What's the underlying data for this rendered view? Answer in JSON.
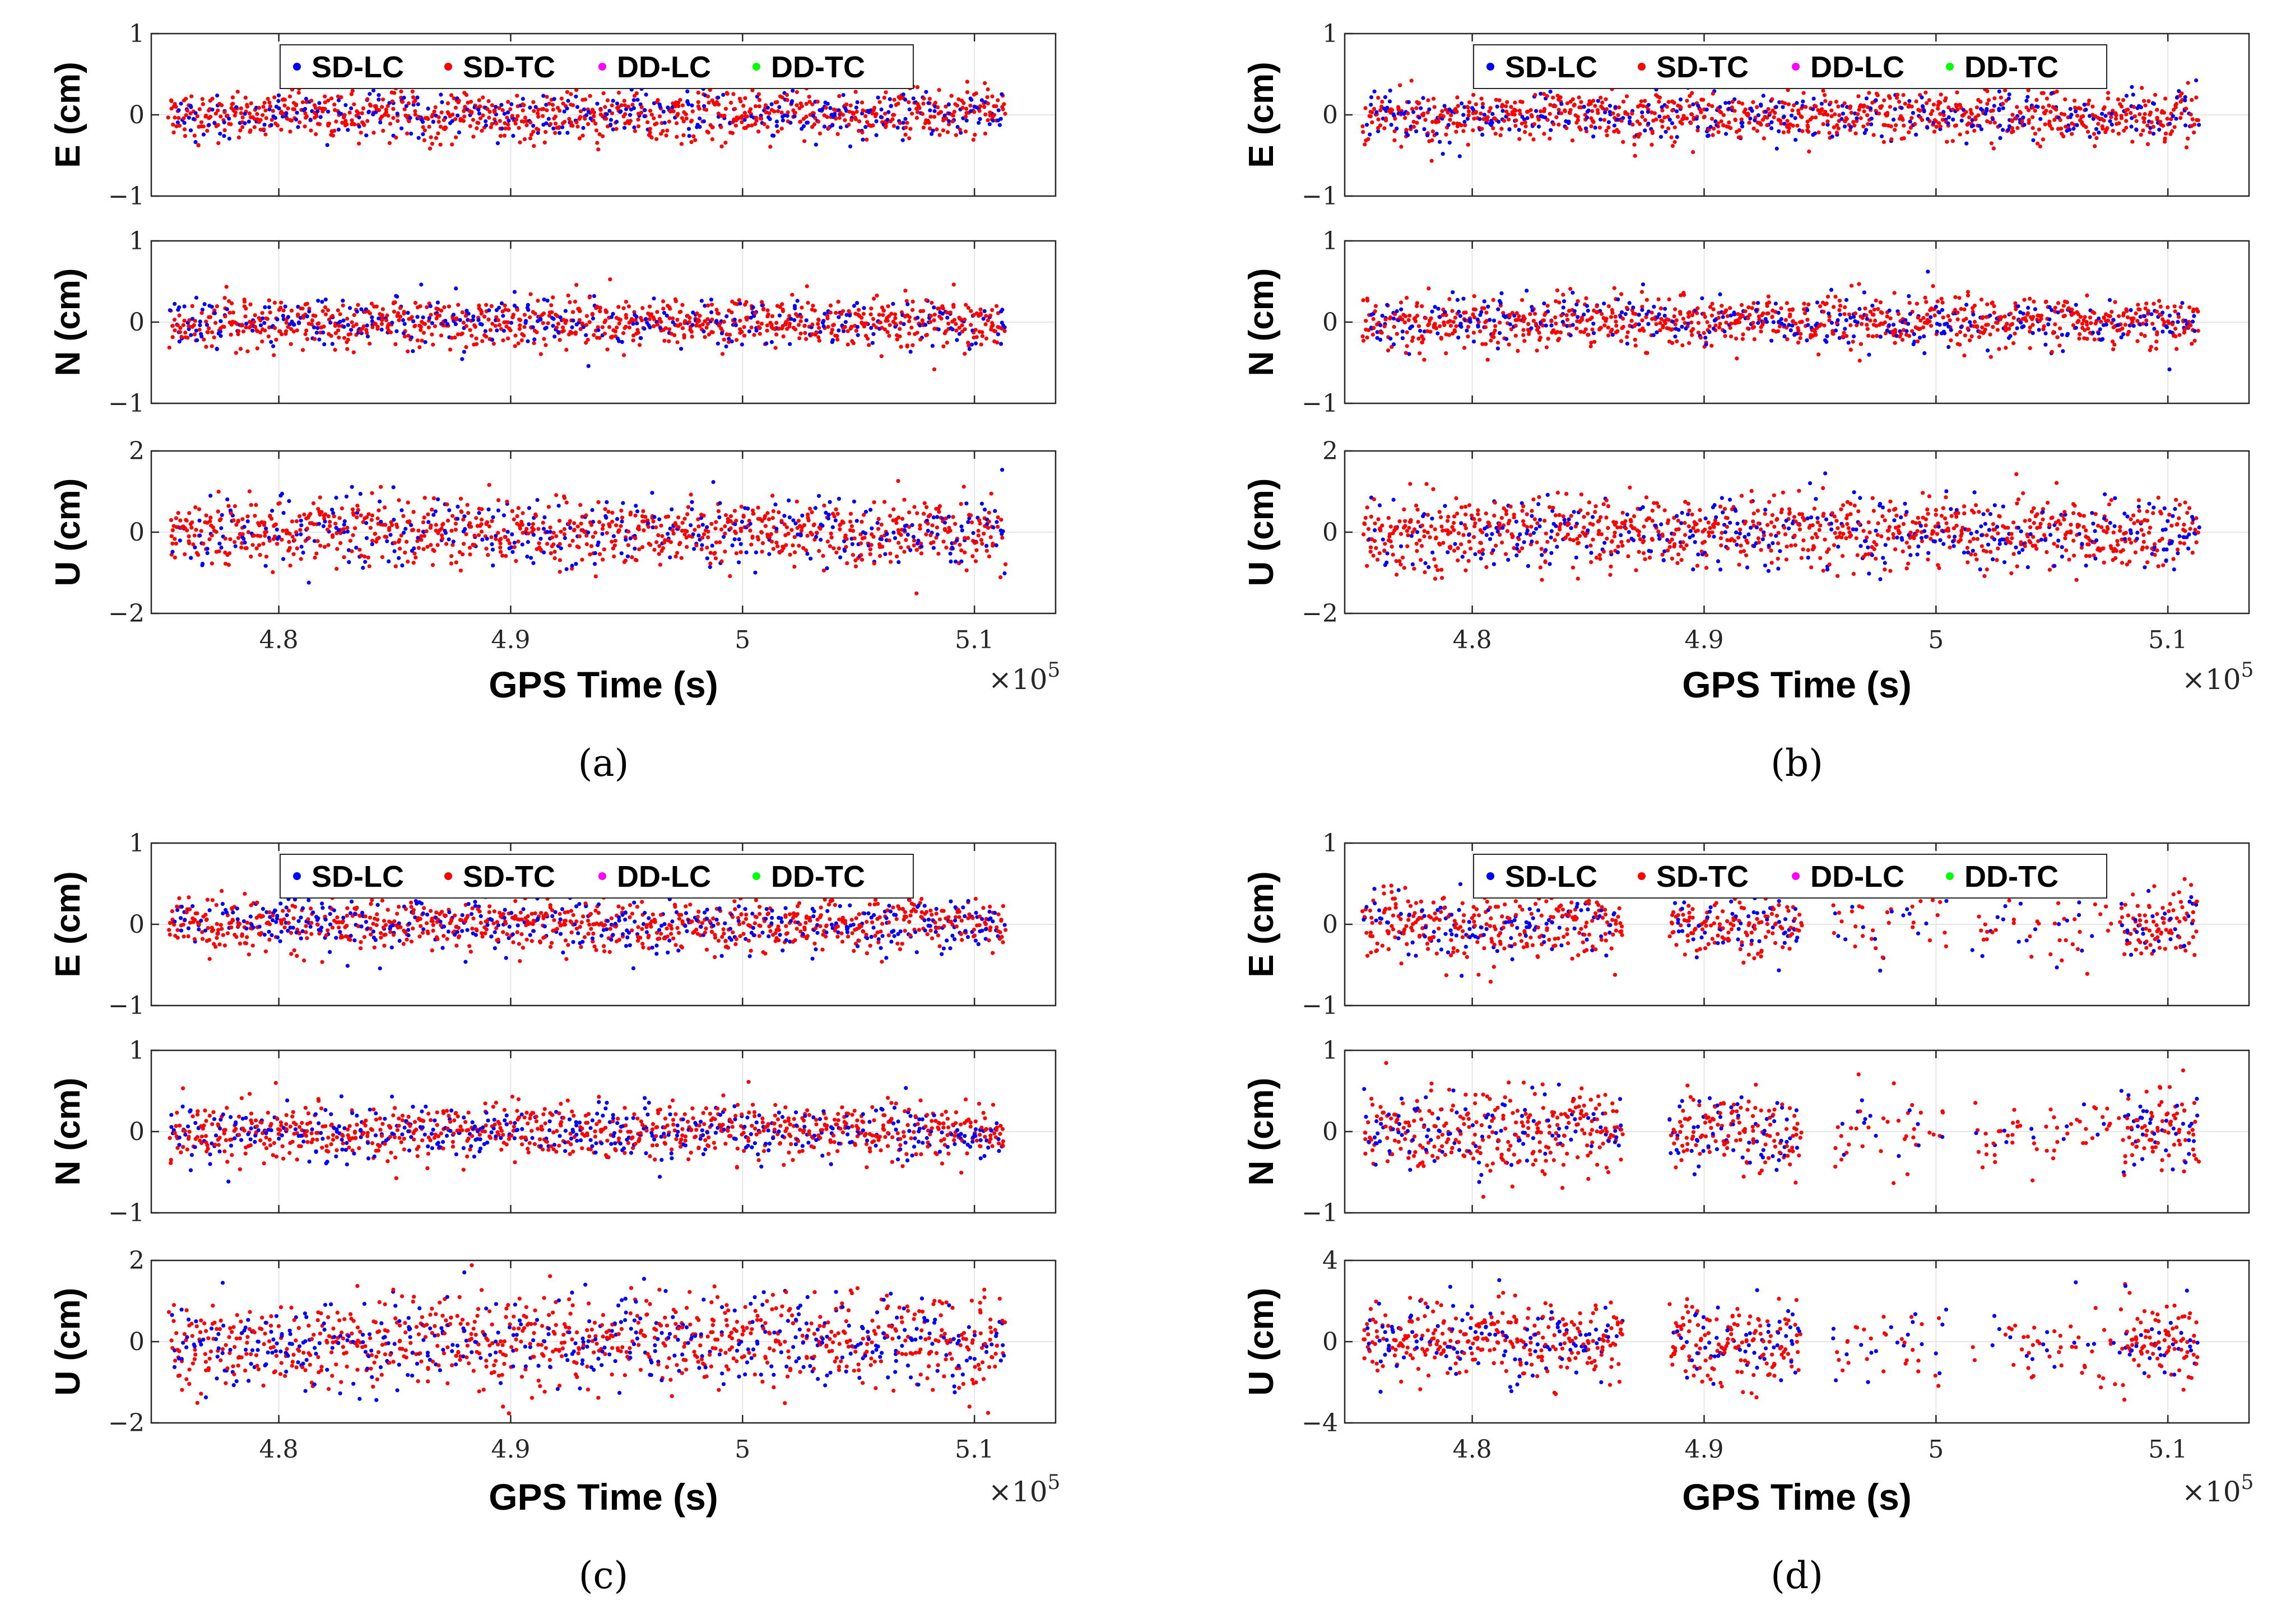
{
  "chart_data": [
    {
      "type": "scatter",
      "panel_label": "(a)",
      "x": {
        "label": "GPS Time (s)",
        "range": [
          474500,
          513500
        ],
        "ticks": [
          480000,
          490000,
          500000,
          510000
        ],
        "tick_labels": [
          "4.8",
          "4.9",
          "5",
          "5.1"
        ],
        "exponent_label": "×10",
        "exponent_power": "5",
        "start": 475300,
        "end": 511300
      },
      "legend": [
        "SD-LC",
        "SD-TC",
        "DD-LC",
        "DD-TC"
      ],
      "series_colors": {
        "SD-LC": "#0000ff",
        "SD-TC": "#ff0000",
        "DD-LC": "#ff00ff",
        "DD-TC": "#00ff00"
      },
      "subplots": [
        {
          "ylabel": "E (cm)",
          "ylim": [
            -1,
            1
          ],
          "yticks": [
            -1,
            0,
            1
          ],
          "ytick_labels": [
            "−1",
            "0",
            "1"
          ],
          "noise_sd": 0.15,
          "blue_frac": 0.3
        },
        {
          "ylabel": "N (cm)",
          "ylim": [
            -1,
            1
          ],
          "yticks": [
            -1,
            0,
            1
          ],
          "ytick_labels": [
            "−1",
            "0",
            "1"
          ],
          "noise_sd": 0.15,
          "blue_frac": 0.3
        },
        {
          "ylabel": "U (cm)",
          "ylim": [
            -2,
            2
          ],
          "yticks": [
            -2,
            0,
            2
          ],
          "ytick_labels": [
            "−2",
            "0",
            "2"
          ],
          "noise_sd": 0.4,
          "blue_frac": 0.3
        }
      ]
    },
    {
      "type": "scatter",
      "panel_label": "(b)",
      "x": {
        "label": "GPS Time (s)",
        "range": [
          474500,
          513500
        ],
        "ticks": [
          480000,
          490000,
          500000,
          510000
        ],
        "tick_labels": [
          "4.8",
          "4.9",
          "5",
          "5.1"
        ],
        "exponent_label": "×10",
        "exponent_power": "5",
        "start": 475300,
        "end": 511300
      },
      "legend": [
        "SD-LC",
        "SD-TC",
        "DD-LC",
        "DD-TC"
      ],
      "series_colors": {
        "SD-LC": "#0000ff",
        "SD-TC": "#ff0000",
        "DD-LC": "#ff00ff",
        "DD-TC": "#00ff00"
      },
      "subplots": [
        {
          "ylabel": "E (cm)",
          "ylim": [
            -1,
            1
          ],
          "yticks": [
            -1,
            0,
            1
          ],
          "ytick_labels": [
            "−1",
            "0",
            "1"
          ],
          "noise_sd": 0.16,
          "blue_frac": 0.3
        },
        {
          "ylabel": "N (cm)",
          "ylim": [
            -1,
            1
          ],
          "yticks": [
            -1,
            0,
            1
          ],
          "ytick_labels": [
            "−1",
            "0",
            "1"
          ],
          "noise_sd": 0.16,
          "blue_frac": 0.3
        },
        {
          "ylabel": "U (cm)",
          "ylim": [
            -2,
            2
          ],
          "yticks": [
            -2,
            0,
            2
          ],
          "ytick_labels": [
            "−2",
            "0",
            "2"
          ],
          "noise_sd": 0.45,
          "blue_frac": 0.3
        }
      ]
    },
    {
      "type": "scatter",
      "panel_label": "(c)",
      "x": {
        "label": "GPS Time (s)",
        "range": [
          474500,
          513500
        ],
        "ticks": [
          480000,
          490000,
          500000,
          510000
        ],
        "tick_labels": [
          "4.8",
          "4.9",
          "5",
          "5.1"
        ],
        "exponent_label": "×10",
        "exponent_power": "5",
        "start": 475300,
        "end": 511300
      },
      "legend": [
        "SD-LC",
        "SD-TC",
        "DD-LC",
        "DD-TC"
      ],
      "series_colors": {
        "SD-LC": "#0000ff",
        "SD-TC": "#ff0000",
        "DD-LC": "#ff00ff",
        "DD-TC": "#00ff00"
      },
      "subplots": [
        {
          "ylabel": "E (cm)",
          "ylim": [
            -1,
            1
          ],
          "yticks": [
            -1,
            0,
            1
          ],
          "ytick_labels": [
            "−1",
            "0",
            "1"
          ],
          "noise_sd": 0.17,
          "blue_frac": 0.35
        },
        {
          "ylabel": "N (cm)",
          "ylim": [
            -1,
            1
          ],
          "yticks": [
            -1,
            0,
            1
          ],
          "ytick_labels": [
            "−1",
            "0",
            "1"
          ],
          "noise_sd": 0.18,
          "blue_frac": 0.35
        },
        {
          "ylabel": "U (cm)",
          "ylim": [
            -2,
            2
          ],
          "yticks": [
            -2,
            0,
            2
          ],
          "ytick_labels": [
            "−2",
            "0",
            "2"
          ],
          "noise_sd": 0.6,
          "blue_frac": 0.35
        }
      ]
    },
    {
      "type": "scatter",
      "panel_label": "(d)",
      "x": {
        "label": "GPS Time (s)",
        "range": [
          474500,
          513500
        ],
        "ticks": [
          480000,
          490000,
          500000,
          510000
        ],
        "tick_labels": [
          "4.8",
          "4.9",
          "5",
          "5.1"
        ],
        "exponent_label": "×10",
        "exponent_power": "5",
        "start": 475300,
        "end": 511300,
        "gaps": [
          [
            486500,
            488500
          ],
          [
            494200,
            495500
          ],
          [
            500500,
            501500
          ]
        ],
        "sparse": [
          [
            494200,
            508000
          ]
        ]
      },
      "legend": [
        "SD-LC",
        "SD-TC",
        "DD-LC",
        "DD-TC"
      ],
      "series_colors": {
        "SD-LC": "#0000ff",
        "SD-TC": "#ff0000",
        "DD-LC": "#ff00ff",
        "DD-TC": "#00ff00"
      },
      "subplots": [
        {
          "ylabel": "E (cm)",
          "ylim": [
            -1,
            1
          ],
          "yticks": [
            -1,
            0,
            1
          ],
          "ytick_labels": [
            "−1",
            "0",
            "1"
          ],
          "noise_sd": 0.22,
          "blue_frac": 0.3
        },
        {
          "ylabel": "N (cm)",
          "ylim": [
            -1,
            1
          ],
          "yticks": [
            -1,
            0,
            1
          ],
          "ytick_labels": [
            "−1",
            "0",
            "1"
          ],
          "noise_sd": 0.25,
          "blue_frac": 0.3
        },
        {
          "ylabel": "U (cm)",
          "ylim": [
            -4,
            4
          ],
          "yticks": [
            -4,
            0,
            4
          ],
          "ytick_labels": [
            "−4",
            "0",
            "4"
          ],
          "noise_sd": 1.0,
          "blue_frac": 0.3
        }
      ]
    }
  ]
}
